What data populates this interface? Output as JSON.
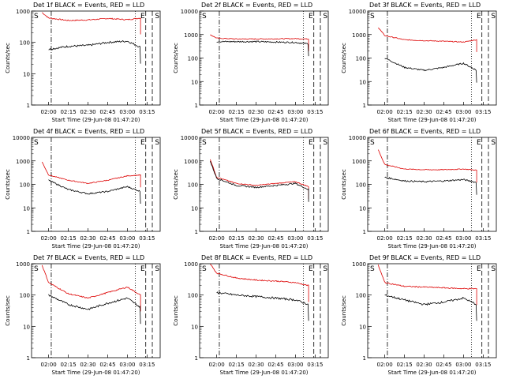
{
  "colors": {
    "events": "#000000",
    "lld": "#dd0000",
    "axes": "#000000",
    "background": "#ffffff"
  },
  "chart_data": [
    {
      "type": "line",
      "title": "Det 1f BLACK = Events, RED = LLD",
      "ylabel": "Counts/sec",
      "xlabel": "Start Time (29-Jun-08 01:47:20)",
      "scale_y": "log",
      "ylim": [
        1,
        1000
      ],
      "yticks": [
        "1",
        "10",
        "100",
        "1000"
      ],
      "xtick_labels": [
        "02:00",
        "02:15",
        "02:30",
        "02:45",
        "03:00",
        "03:15"
      ],
      "markers": [
        {
          "label": "S",
          "position": "left"
        },
        {
          "label": "E",
          "position": "right"
        },
        {
          "label": "S",
          "position": "far-right"
        }
      ],
      "x": [
        "01:55",
        "02:00",
        "02:15",
        "02:30",
        "02:45",
        "03:00",
        "03:10"
      ],
      "series": [
        {
          "name": "LLD",
          "values": [
            900,
            600,
            500,
            520,
            580,
            530,
            600
          ]
        },
        {
          "name": "Events",
          "values": [
            null,
            60,
            75,
            80,
            100,
            110,
            70
          ]
        }
      ]
    },
    {
      "type": "line",
      "title": "Det 2f BLACK = Events, RED = LLD",
      "ylabel": "Counts/sec",
      "xlabel": "Start Time (29-Jun-08 01:47:20)",
      "scale_y": "log",
      "ylim": [
        1,
        10000
      ],
      "yticks": [
        "1",
        "10",
        "100",
        "1000",
        "10000"
      ],
      "xtick_labels": [
        "02:00",
        "02:15",
        "02:30",
        "02:45",
        "03:00",
        "03:15"
      ],
      "markers": [
        {
          "label": "S",
          "position": "left"
        },
        {
          "label": "E",
          "position": "right"
        },
        {
          "label": "S",
          "position": "far-right"
        }
      ],
      "x": [
        "01:55",
        "02:00",
        "02:15",
        "02:30",
        "02:45",
        "03:00",
        "03:10"
      ],
      "series": [
        {
          "name": "LLD",
          "values": [
            1000,
            700,
            650,
            650,
            660,
            670,
            650
          ]
        },
        {
          "name": "Events",
          "values": [
            null,
            500,
            500,
            500,
            480,
            460,
            400
          ]
        }
      ]
    },
    {
      "type": "line",
      "title": "Det 3f BLACK = Events, RED = LLD",
      "ylabel": "Counts/sec",
      "xlabel": "Start Time (29-Jun-08 01:47:20)",
      "scale_y": "log",
      "ylim": [
        1,
        10000
      ],
      "yticks": [
        "1",
        "10",
        "100",
        "1000",
        "10000"
      ],
      "xtick_labels": [
        "02:00",
        "02:15",
        "02:30",
        "02:45",
        "03:00",
        "03:15"
      ],
      "markers": [
        {
          "label": "S",
          "position": "left"
        },
        {
          "label": "E",
          "position": "right"
        },
        {
          "label": "S",
          "position": "far-right"
        }
      ],
      "x": [
        "01:55",
        "02:00",
        "02:15",
        "02:30",
        "02:45",
        "03:00",
        "03:10"
      ],
      "series": [
        {
          "name": "LLD",
          "values": [
            2000,
            900,
            600,
            550,
            520,
            480,
            600
          ]
        },
        {
          "name": "Events",
          "values": [
            null,
            100,
            40,
            30,
            40,
            60,
            30
          ]
        }
      ]
    },
    {
      "type": "line",
      "title": "Det 4f BLACK = Events, RED = LLD",
      "ylabel": "Counts/sec",
      "xlabel": "Start Time (29-Jun-08 01:47:20)",
      "scale_y": "log",
      "ylim": [
        1,
        10000
      ],
      "yticks": [
        "1",
        "10",
        "100",
        "1000",
        "10000"
      ],
      "xtick_labels": [
        "02:00",
        "02:15",
        "02:30",
        "02:45",
        "03:00",
        "03:15"
      ],
      "markers": [
        {
          "label": "S",
          "position": "left"
        },
        {
          "label": "E",
          "position": "right"
        },
        {
          "label": "S",
          "position": "far-right"
        }
      ],
      "x": [
        "01:55",
        "02:00",
        "02:15",
        "02:30",
        "02:45",
        "03:00",
        "03:10"
      ],
      "series": [
        {
          "name": "LLD",
          "values": [
            900,
            250,
            150,
            110,
            150,
            230,
            250
          ]
        },
        {
          "name": "Events",
          "values": [
            null,
            150,
            60,
            40,
            50,
            80,
            50
          ]
        }
      ]
    },
    {
      "type": "line",
      "title": "Det 5f BLACK = Events, RED = LLD",
      "ylabel": "Counts/sec",
      "xlabel": "Start Time (29-Jun-08 01:47:20)",
      "scale_y": "log",
      "ylim": [
        1,
        10000
      ],
      "yticks": [
        "1",
        "10",
        "100",
        "1000",
        "10000"
      ],
      "xtick_labels": [
        "02:00",
        "02:15",
        "02:30",
        "02:45",
        "03:00",
        "03:15"
      ],
      "markers": [
        {
          "label": "S",
          "position": "left"
        },
        {
          "label": "E",
          "position": "right"
        },
        {
          "label": "S",
          "position": "far-right"
        }
      ],
      "x": [
        "01:55",
        "02:00",
        "02:15",
        "02:30",
        "02:45",
        "03:00",
        "03:10"
      ],
      "series": [
        {
          "name": "LLD",
          "values": [
            1200,
            200,
            110,
            90,
            110,
            130,
            80
          ]
        },
        {
          "name": "Events",
          "values": [
            1000,
            180,
            90,
            75,
            90,
            110,
            60
          ]
        }
      ]
    },
    {
      "type": "line",
      "title": "Det 6f BLACK = Events, RED = LLD",
      "ylabel": "Counts/sec",
      "xlabel": "Start Time (29-Jun-08 01:47:20)",
      "scale_y": "log",
      "ylim": [
        1,
        10000
      ],
      "yticks": [
        "1",
        "10",
        "100",
        "1000",
        "10000"
      ],
      "xtick_labels": [
        "02:00",
        "02:15",
        "02:30",
        "02:45",
        "03:00",
        "03:15"
      ],
      "markers": [
        {
          "label": "S",
          "position": "left"
        },
        {
          "label": "E",
          "position": "right"
        },
        {
          "label": "S",
          "position": "far-right"
        }
      ],
      "x": [
        "01:55",
        "02:00",
        "02:15",
        "02:30",
        "02:45",
        "03:00",
        "03:10"
      ],
      "series": [
        {
          "name": "LLD",
          "values": [
            3000,
            700,
            450,
            420,
            420,
            450,
            400
          ]
        },
        {
          "name": "Events",
          "values": [
            null,
            200,
            140,
            130,
            140,
            160,
            120
          ]
        }
      ]
    },
    {
      "type": "line",
      "title": "Det 7f BLACK = Events, RED = LLD",
      "ylabel": "Counts/sec",
      "xlabel": "Start Time (29-Jun-08 01:47:20)",
      "scale_y": "log",
      "ylim": [
        1,
        1000
      ],
      "yticks": [
        "1",
        "10",
        "100",
        "1000"
      ],
      "xtick_labels": [
        "02:00",
        "02:15",
        "02:30",
        "02:45",
        "03:00",
        "03:15"
      ],
      "markers": [
        {
          "label": "S",
          "position": "left"
        },
        {
          "label": "E",
          "position": "right"
        },
        {
          "label": "S",
          "position": "far-right"
        }
      ],
      "x": [
        "01:55",
        "02:00",
        "02:15",
        "02:30",
        "02:45",
        "03:00",
        "03:10"
      ],
      "series": [
        {
          "name": "LLD",
          "values": [
            900,
            250,
            110,
            80,
            120,
            180,
            100
          ]
        },
        {
          "name": "Events",
          "values": [
            null,
            100,
            50,
            35,
            55,
            80,
            40
          ]
        }
      ]
    },
    {
      "type": "line",
      "title": "Det 8f BLACK = Events, RED = LLD",
      "ylabel": "Counts/sec",
      "xlabel": "Start Time (29-Jun-08 01:47:20)",
      "scale_y": "log",
      "ylim": [
        1,
        1000
      ],
      "yticks": [
        "1",
        "10",
        "100",
        "1000"
      ],
      "xtick_labels": [
        "02:00",
        "02:15",
        "02:30",
        "02:45",
        "03:00",
        "03:15"
      ],
      "markers": [
        {
          "label": "S",
          "position": "left"
        },
        {
          "label": "E",
          "position": "right"
        },
        {
          "label": "S",
          "position": "far-right"
        }
      ],
      "x": [
        "01:55",
        "02:00",
        "02:15",
        "02:30",
        "02:45",
        "03:00",
        "03:10"
      ],
      "series": [
        {
          "name": "LLD",
          "values": [
            1000,
            500,
            350,
            300,
            280,
            250,
            200
          ]
        },
        {
          "name": "Events",
          "values": [
            null,
            120,
            100,
            90,
            80,
            70,
            50
          ]
        }
      ]
    },
    {
      "type": "line",
      "title": "Det 9f BLACK = Events, RED = LLD",
      "ylabel": "Counts/sec",
      "xlabel": "Start Time (29-Jun-08 01:47:20)",
      "scale_y": "log",
      "ylim": [
        1,
        1000
      ],
      "yticks": [
        "1",
        "10",
        "100",
        "1000"
      ],
      "xtick_labels": [
        "02:00",
        "02:15",
        "02:30",
        "02:45",
        "03:00",
        "03:15"
      ],
      "markers": [
        {
          "label": "S",
          "position": "left"
        },
        {
          "label": "E",
          "position": "right"
        },
        {
          "label": "S",
          "position": "far-right"
        }
      ],
      "x": [
        "01:55",
        "02:00",
        "02:15",
        "02:30",
        "02:45",
        "03:00",
        "03:10"
      ],
      "series": [
        {
          "name": "LLD",
          "values": [
            900,
            250,
            190,
            180,
            170,
            160,
            160
          ]
        },
        {
          "name": "Events",
          "values": [
            null,
            100,
            70,
            50,
            60,
            80,
            50
          ]
        }
      ]
    }
  ]
}
